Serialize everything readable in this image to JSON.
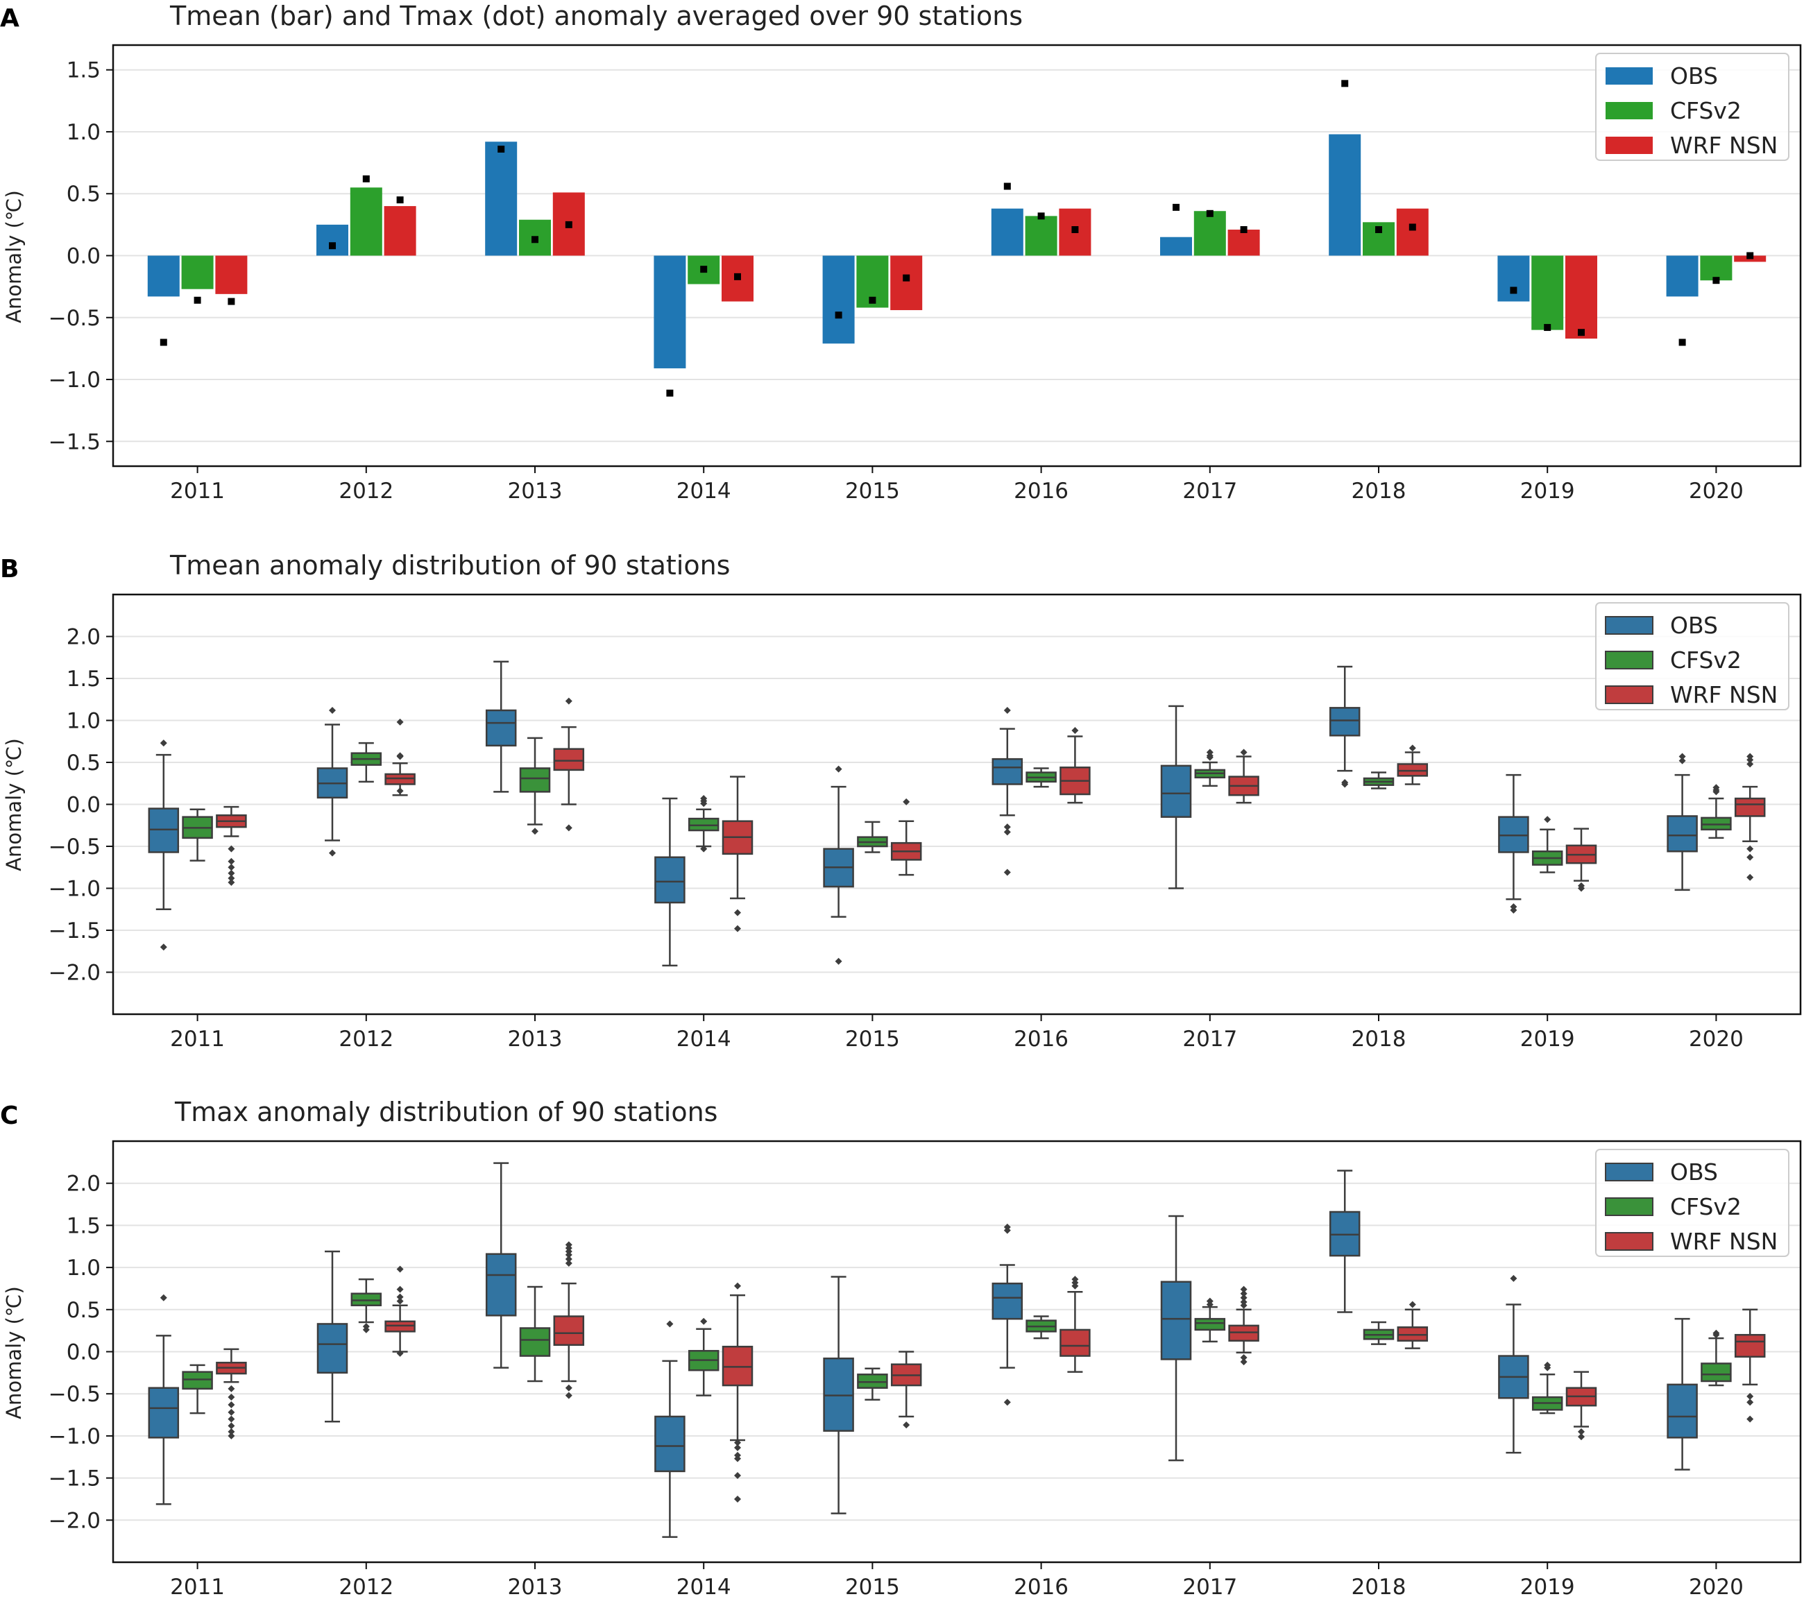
{
  "colors": {
    "OBS": "#1f77b4",
    "CFSv2": "#2ca02c",
    "WRF NSN": "#d62728",
    "OBS_box": "#3274a1",
    "CFSv2_box": "#3a923a",
    "WRF NSN_box": "#c03d3e"
  },
  "chart_data": [
    {
      "panel": "A",
      "type": "bar",
      "title": "Tmean (bar) and Tmax (dot) anomaly averaged over 90 stations",
      "xlabel": "",
      "ylabel": "Anomaly (℃)",
      "ylim": [
        -1.7,
        1.7
      ],
      "yticks": [
        -1.5,
        -1.0,
        -0.5,
        0.0,
        0.5,
        1.0,
        1.5
      ],
      "ytick_labels": [
        "−1.5",
        "−1.0",
        "−0.5",
        "0.0",
        "0.5",
        "1.0",
        "1.5"
      ],
      "grid": "horizontal",
      "legend_position": "top-right",
      "categories": [
        "2011",
        "2012",
        "2013",
        "2014",
        "2015",
        "2016",
        "2017",
        "2018",
        "2019",
        "2020"
      ],
      "series": [
        {
          "name": "OBS",
          "values": [
            -0.33,
            0.25,
            0.92,
            -0.91,
            -0.71,
            0.38,
            0.15,
            0.98,
            -0.37,
            -0.33
          ],
          "dots": [
            -0.7,
            0.08,
            0.86,
            -1.11,
            -0.48,
            0.56,
            0.39,
            1.39,
            -0.28,
            -0.7
          ]
        },
        {
          "name": "CFSv2",
          "values": [
            -0.27,
            0.55,
            0.29,
            -0.23,
            -0.42,
            0.32,
            0.36,
            0.27,
            -0.6,
            -0.2
          ],
          "dots": [
            -0.36,
            0.62,
            0.13,
            -0.11,
            -0.36,
            0.32,
            0.34,
            0.21,
            -0.58,
            -0.2
          ]
        },
        {
          "name": "WRF NSN",
          "values": [
            -0.31,
            0.4,
            0.51,
            -0.37,
            -0.44,
            0.38,
            0.21,
            0.38,
            -0.67,
            -0.05
          ],
          "dots": [
            -0.37,
            0.45,
            0.25,
            -0.17,
            -0.18,
            0.21,
            0.21,
            0.23,
            -0.62,
            0.0
          ]
        }
      ]
    },
    {
      "panel": "B",
      "type": "box",
      "title": "Tmean anomaly distribution of 90 stations",
      "xlabel": "",
      "ylabel": "Anomaly (℃)",
      "ylim": [
        -2.5,
        2.5
      ],
      "yticks": [
        -2.0,
        -1.5,
        -1.0,
        -0.5,
        0.0,
        0.5,
        1.0,
        1.5,
        2.0
      ],
      "ytick_labels": [
        "−2.0",
        "−1.5",
        "−1.0",
        "−0.5",
        "0.0",
        "0.5",
        "1.0",
        "1.5",
        "2.0"
      ],
      "grid": "horizontal",
      "legend_position": "top-right",
      "categories": [
        "2011",
        "2012",
        "2013",
        "2014",
        "2015",
        "2016",
        "2017",
        "2018",
        "2019",
        "2020"
      ],
      "series": [
        {
          "name": "OBS",
          "boxes": [
            {
              "wlo": -1.25,
              "q1": -0.57,
              "med": -0.3,
              "q3": -0.05,
              "whi": 0.59,
              "out": [
                0.73,
                -1.7
              ]
            },
            {
              "wlo": -0.43,
              "q1": 0.08,
              "med": 0.25,
              "q3": 0.43,
              "whi": 0.95,
              "out": [
                1.12,
                -0.58
              ]
            },
            {
              "wlo": 0.15,
              "q1": 0.7,
              "med": 0.97,
              "q3": 1.12,
              "whi": 1.7,
              "out": []
            },
            {
              "wlo": -1.92,
              "q1": -1.17,
              "med": -0.92,
              "q3": -0.63,
              "whi": 0.07,
              "out": []
            },
            {
              "wlo": -1.34,
              "q1": -0.98,
              "med": -0.75,
              "q3": -0.53,
              "whi": 0.21,
              "out": [
                0.42,
                -1.87
              ]
            },
            {
              "wlo": -0.13,
              "q1": 0.24,
              "med": 0.44,
              "q3": 0.54,
              "whi": 0.9,
              "out": [
                1.12,
                -0.27,
                -0.33,
                -0.81
              ]
            },
            {
              "wlo": -1.0,
              "q1": -0.15,
              "med": 0.13,
              "q3": 0.46,
              "whi": 1.17,
              "out": []
            },
            {
              "wlo": 0.4,
              "q1": 0.82,
              "med": 1.0,
              "q3": 1.15,
              "whi": 1.64,
              "out": [
                0.26,
                0.24
              ]
            },
            {
              "wlo": -1.13,
              "q1": -0.57,
              "med": -0.37,
              "q3": -0.15,
              "whi": 0.35,
              "out": [
                -1.22,
                -1.26
              ]
            },
            {
              "wlo": -1.02,
              "q1": -0.56,
              "med": -0.37,
              "q3": -0.14,
              "whi": 0.35,
              "out": [
                0.52,
                0.57
              ]
            }
          ]
        },
        {
          "name": "CFSv2",
          "boxes": [
            {
              "wlo": -0.67,
              "q1": -0.4,
              "med": -0.28,
              "q3": -0.15,
              "whi": -0.06,
              "out": []
            },
            {
              "wlo": 0.27,
              "q1": 0.47,
              "med": 0.54,
              "q3": 0.61,
              "whi": 0.73,
              "out": []
            },
            {
              "wlo": -0.24,
              "q1": 0.15,
              "med": 0.31,
              "q3": 0.43,
              "whi": 0.79,
              "out": [
                -0.32
              ]
            },
            {
              "wlo": -0.5,
              "q1": -0.31,
              "med": -0.25,
              "q3": -0.17,
              "whi": -0.06,
              "out": [
                0.07,
                0.04,
                0.01,
                -0.53
              ]
            },
            {
              "wlo": -0.57,
              "q1": -0.5,
              "med": -0.45,
              "q3": -0.39,
              "whi": -0.21,
              "out": []
            },
            {
              "wlo": 0.21,
              "q1": 0.27,
              "med": 0.32,
              "q3": 0.38,
              "whi": 0.43,
              "out": []
            },
            {
              "wlo": 0.22,
              "q1": 0.32,
              "med": 0.37,
              "q3": 0.41,
              "whi": 0.5,
              "out": [
                0.62,
                0.58,
                0.56
              ]
            },
            {
              "wlo": 0.19,
              "q1": 0.23,
              "med": 0.27,
              "q3": 0.31,
              "whi": 0.38,
              "out": []
            },
            {
              "wlo": -0.81,
              "q1": -0.72,
              "med": -0.64,
              "q3": -0.56,
              "whi": -0.3,
              "out": [
                -0.18
              ]
            },
            {
              "wlo": -0.4,
              "q1": -0.3,
              "med": -0.24,
              "q3": -0.16,
              "whi": 0.07,
              "out": [
                0.2,
                0.17,
                0.15
              ]
            }
          ]
        },
        {
          "name": "WRF NSN",
          "boxes": [
            {
              "wlo": -0.38,
              "q1": -0.27,
              "med": -0.2,
              "q3": -0.13,
              "whi": -0.03,
              "out": [
                -0.53,
                -0.68,
                -0.75,
                -0.82,
                -0.88,
                -0.93
              ]
            },
            {
              "wlo": 0.11,
              "q1": 0.24,
              "med": 0.31,
              "q3": 0.36,
              "whi": 0.49,
              "out": [
                0.98,
                0.57,
                0.58,
                0.16
              ]
            },
            {
              "wlo": 0.0,
              "q1": 0.41,
              "med": 0.52,
              "q3": 0.66,
              "whi": 0.92,
              "out": [
                1.23,
                -0.28
              ]
            },
            {
              "wlo": -1.12,
              "q1": -0.59,
              "med": -0.39,
              "q3": -0.2,
              "whi": 0.33,
              "out": [
                -1.29,
                -1.48
              ]
            },
            {
              "wlo": -0.84,
              "q1": -0.66,
              "med": -0.56,
              "q3": -0.46,
              "whi": -0.2,
              "out": [
                0.03
              ]
            },
            {
              "wlo": 0.02,
              "q1": 0.12,
              "med": 0.28,
              "q3": 0.44,
              "whi": 0.81,
              "out": [
                0.88
              ]
            },
            {
              "wlo": 0.02,
              "q1": 0.11,
              "med": 0.22,
              "q3": 0.33,
              "whi": 0.57,
              "out": [
                0.62
              ]
            },
            {
              "wlo": 0.24,
              "q1": 0.34,
              "med": 0.4,
              "q3": 0.48,
              "whi": 0.62,
              "out": [
                0.67
              ]
            },
            {
              "wlo": -0.91,
              "q1": -0.7,
              "med": -0.6,
              "q3": -0.49,
              "whi": -0.29,
              "out": [
                -0.97,
                -1.0
              ]
            },
            {
              "wlo": -0.44,
              "q1": -0.14,
              "med": 0.0,
              "q3": 0.07,
              "whi": 0.21,
              "out": [
                0.57,
                0.53,
                0.48,
                -0.53,
                -0.63,
                -0.87
              ]
            }
          ]
        }
      ]
    },
    {
      "panel": "C",
      "type": "box",
      "title": "Tmax anomaly distribution of 90 stations",
      "xlabel": "",
      "ylabel": "Anomaly (℃)",
      "ylim": [
        -2.5,
        2.5
      ],
      "yticks": [
        -2.0,
        -1.5,
        -1.0,
        -0.5,
        0.0,
        0.5,
        1.0,
        1.5,
        2.0
      ],
      "ytick_labels": [
        "−2.0",
        "−1.5",
        "−1.0",
        "−0.5",
        "0.0",
        "0.5",
        "1.0",
        "1.5",
        "2.0"
      ],
      "grid": "horizontal",
      "legend_position": "top-right",
      "categories": [
        "2011",
        "2012",
        "2013",
        "2014",
        "2015",
        "2016",
        "2017",
        "2018",
        "2019",
        "2020"
      ],
      "series": [
        {
          "name": "OBS",
          "boxes": [
            {
              "wlo": -1.81,
              "q1": -1.02,
              "med": -0.67,
              "q3": -0.43,
              "whi": 0.19,
              "out": [
                0.64
              ]
            },
            {
              "wlo": -0.83,
              "q1": -0.25,
              "med": 0.09,
              "q3": 0.33,
              "whi": 1.19,
              "out": []
            },
            {
              "wlo": -0.19,
              "q1": 0.43,
              "med": 0.91,
              "q3": 1.16,
              "whi": 2.24,
              "out": []
            },
            {
              "wlo": -2.2,
              "q1": -1.42,
              "med": -1.12,
              "q3": -0.77,
              "whi": -0.11,
              "out": [
                0.33
              ]
            },
            {
              "wlo": -1.92,
              "q1": -0.94,
              "med": -0.52,
              "q3": -0.08,
              "whi": 0.89,
              "out": []
            },
            {
              "wlo": -0.19,
              "q1": 0.39,
              "med": 0.64,
              "q3": 0.81,
              "whi": 1.03,
              "out": [
                1.48,
                1.44,
                -0.6
              ]
            },
            {
              "wlo": -1.29,
              "q1": -0.09,
              "med": 0.39,
              "q3": 0.83,
              "whi": 1.61,
              "out": []
            },
            {
              "wlo": 0.47,
              "q1": 1.14,
              "med": 1.39,
              "q3": 1.66,
              "whi": 2.15,
              "out": []
            },
            {
              "wlo": -1.2,
              "q1": -0.55,
              "med": -0.3,
              "q3": -0.05,
              "whi": 0.56,
              "out": [
                0.87
              ]
            },
            {
              "wlo": -1.4,
              "q1": -1.02,
              "med": -0.77,
              "q3": -0.39,
              "whi": 0.39,
              "out": []
            }
          ]
        },
        {
          "name": "CFSv2",
          "boxes": [
            {
              "wlo": -0.73,
              "q1": -0.44,
              "med": -0.33,
              "q3": -0.24,
              "whi": -0.16,
              "out": []
            },
            {
              "wlo": 0.35,
              "q1": 0.55,
              "med": 0.61,
              "q3": 0.69,
              "whi": 0.86,
              "out": [
                0.3,
                0.26
              ]
            },
            {
              "wlo": -0.35,
              "q1": -0.05,
              "med": 0.14,
              "q3": 0.28,
              "whi": 0.77,
              "out": []
            },
            {
              "wlo": -0.52,
              "q1": -0.22,
              "med": -0.1,
              "q3": 0.01,
              "whi": 0.27,
              "out": [
                0.36
              ]
            },
            {
              "wlo": -0.57,
              "q1": -0.43,
              "med": -0.36,
              "q3": -0.27,
              "whi": -0.2,
              "out": []
            },
            {
              "wlo": 0.16,
              "q1": 0.24,
              "med": 0.3,
              "q3": 0.37,
              "whi": 0.42,
              "out": []
            },
            {
              "wlo": 0.12,
              "q1": 0.26,
              "med": 0.34,
              "q3": 0.39,
              "whi": 0.53,
              "out": [
                0.6,
                0.56
              ]
            },
            {
              "wlo": 0.09,
              "q1": 0.15,
              "med": 0.2,
              "q3": 0.26,
              "whi": 0.35,
              "out": []
            },
            {
              "wlo": -0.73,
              "q1": -0.69,
              "med": -0.61,
              "q3": -0.54,
              "whi": -0.27,
              "out": [
                -0.19,
                -0.16
              ]
            },
            {
              "wlo": -0.4,
              "q1": -0.35,
              "med": -0.27,
              "q3": -0.14,
              "whi": 0.16,
              "out": [
                0.22,
                0.2
              ]
            }
          ]
        },
        {
          "name": "WRF NSN",
          "boxes": [
            {
              "wlo": -0.36,
              "q1": -0.26,
              "med": -0.19,
              "q3": -0.13,
              "whi": 0.03,
              "out": [
                -0.44,
                -0.54,
                -0.63,
                -0.72,
                -0.8,
                -0.88,
                -0.95,
                -1.0
              ]
            },
            {
              "wlo": 0.0,
              "q1": 0.24,
              "med": 0.31,
              "q3": 0.36,
              "whi": 0.55,
              "out": [
                0.98,
                0.74,
                0.65,
                0.6,
                -0.02
              ]
            },
            {
              "wlo": -0.35,
              "q1": 0.08,
              "med": 0.22,
              "q3": 0.42,
              "whi": 0.81,
              "out": [
                1.27,
                1.23,
                1.19,
                1.15,
                1.1,
                1.05,
                -0.43,
                -0.52
              ]
            },
            {
              "wlo": -1.05,
              "q1": -0.4,
              "med": -0.18,
              "q3": 0.06,
              "whi": 0.67,
              "out": [
                0.78,
                -1.08,
                -1.14,
                -1.23,
                -1.27,
                -1.47,
                -1.75
              ]
            },
            {
              "wlo": -0.77,
              "q1": -0.4,
              "med": -0.28,
              "q3": -0.15,
              "whi": 0.0,
              "out": [
                -0.87
              ]
            },
            {
              "wlo": -0.24,
              "q1": -0.05,
              "med": 0.07,
              "q3": 0.26,
              "whi": 0.71,
              "out": [
                0.86,
                0.82,
                0.78
              ]
            },
            {
              "wlo": -0.01,
              "q1": 0.13,
              "med": 0.23,
              "q3": 0.31,
              "whi": 0.5,
              "out": [
                0.74,
                0.69,
                0.64,
                0.59,
                0.55,
                -0.07,
                -0.12
              ]
            },
            {
              "wlo": 0.04,
              "q1": 0.13,
              "med": 0.2,
              "q3": 0.29,
              "whi": 0.5,
              "out": [
                0.56
              ]
            },
            {
              "wlo": -0.89,
              "q1": -0.64,
              "med": -0.53,
              "q3": -0.43,
              "whi": -0.24,
              "out": [
                -0.95,
                -1.01
              ]
            },
            {
              "wlo": -0.39,
              "q1": -0.06,
              "med": 0.12,
              "q3": 0.2,
              "whi": 0.5,
              "out": [
                -0.53,
                -0.6,
                -0.8
              ]
            }
          ]
        }
      ]
    }
  ]
}
